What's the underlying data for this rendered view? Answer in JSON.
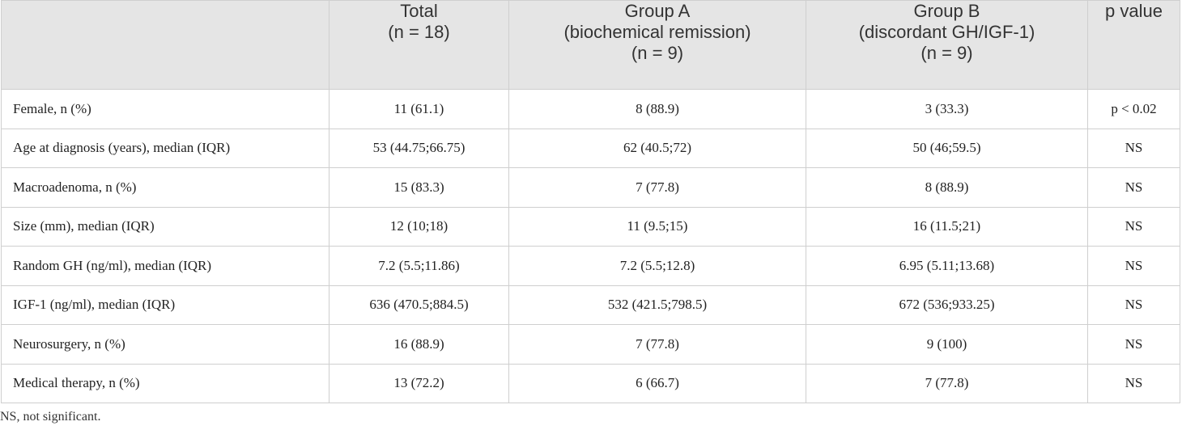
{
  "table": {
    "columns": [
      {
        "lines": [
          ""
        ]
      },
      {
        "lines": [
          "Total",
          "(n = 18)"
        ]
      },
      {
        "lines": [
          "Group A",
          "(biochemical remission)",
          "(n = 9)"
        ]
      },
      {
        "lines": [
          "Group B",
          "(discordant GH/IGF-1)",
          "(n = 9)"
        ]
      },
      {
        "lines": [
          "p value"
        ]
      }
    ],
    "rows": [
      {
        "label": "Female, n (%)",
        "total": "11 (61.1)",
        "group_a": "8 (88.9)",
        "group_b": "3 (33.3)",
        "p_value": "p < 0.02"
      },
      {
        "label": "Age at diagnosis (years), median (IQR)",
        "total": "53 (44.75;66.75)",
        "group_a": "62 (40.5;72)",
        "group_b": "50 (46;59.5)",
        "p_value": "NS"
      },
      {
        "label": "Macroadenoma, n (%)",
        "total": "15 (83.3)",
        "group_a": "7 (77.8)",
        "group_b": "8 (88.9)",
        "p_value": "NS"
      },
      {
        "label": "Size (mm), median (IQR)",
        "total": "12 (10;18)",
        "group_a": "11 (9.5;15)",
        "group_b": "16 (11.5;21)",
        "p_value": "NS"
      },
      {
        "label": "Random GH (ng/ml), median (IQR)",
        "total": "7.2 (5.5;11.86)",
        "group_a": "7.2 (5.5;12.8)",
        "group_b": "6.95 (5.11;13.68)",
        "p_value": "NS"
      },
      {
        "label": "IGF-1 (ng/ml), median (IQR)",
        "total": "636 (470.5;884.5)",
        "group_a": "532 (421.5;798.5)",
        "group_b": "672 (536;933.25)",
        "p_value": "NS"
      },
      {
        "label": "Neurosurgery, n (%)",
        "total": "16 (88.9)",
        "group_a": "7 (77.8)",
        "group_b": "9 (100)",
        "p_value": "NS"
      },
      {
        "label": "Medical therapy, n (%)",
        "total": "13 (72.2)",
        "group_a": "6 (66.7)",
        "group_b": "7 (77.8)",
        "p_value": "NS"
      }
    ]
  },
  "footnote": "NS, not significant.",
  "colors": {
    "header_background": "#e5e5e5",
    "border": "#cfcfcf",
    "text": "#222222"
  }
}
